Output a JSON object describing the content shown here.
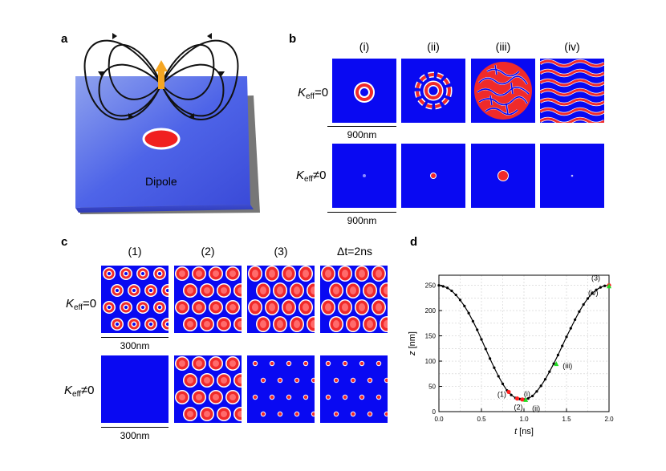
{
  "panels": {
    "a": {
      "label": "a",
      "caption": "Dipole"
    },
    "b": {
      "label": "b",
      "columns": [
        "(i)",
        "(ii)",
        "(iii)",
        "(iv)"
      ],
      "rows": [
        {
          "k": "K",
          "sub": "eff",
          "rest": "=0"
        },
        {
          "k": "K",
          "sub": "eff",
          "rest": "≠0"
        }
      ],
      "scalebar": "900nm"
    },
    "c": {
      "label": "c",
      "columns": [
        "(1)",
        "(2)",
        "(3)",
        "Δt=2ns"
      ],
      "rows": [
        {
          "k": "K",
          "sub": "eff",
          "rest": "=0"
        },
        {
          "k": "K",
          "sub": "eff",
          "rest": "≠0"
        }
      ],
      "scalebar": "300nm"
    },
    "d": {
      "label": "d"
    }
  },
  "colors": {
    "domain_blue": "#0909f2",
    "core_red": "#f0202a",
    "wall_white": "#ffffff",
    "marker_red": "#ff2020",
    "marker_green": "#22dd22"
  },
  "chart_data": {
    "type": "line",
    "xlabel_italic": "t",
    "xlabel_unit": "[ns]",
    "ylabel_italic": "z",
    "ylabel_unit": "[nm]",
    "xlim": [
      0,
      2.0
    ],
    "ylim": [
      0,
      270
    ],
    "xticks": [
      "0.0",
      "0.5",
      "1.0",
      "1.5",
      "2.0"
    ],
    "yticks": [
      "0",
      "50",
      "100",
      "150",
      "200",
      "250"
    ],
    "grid": true,
    "series": [
      {
        "values": [
          [
            0.0,
            250
          ],
          [
            0.05,
            248
          ],
          [
            0.1,
            245
          ],
          [
            0.15,
            239
          ],
          [
            0.2,
            231
          ],
          [
            0.25,
            221
          ],
          [
            0.3,
            209
          ],
          [
            0.35,
            195
          ],
          [
            0.4,
            179
          ],
          [
            0.45,
            162
          ],
          [
            0.5,
            143
          ],
          [
            0.55,
            124
          ],
          [
            0.6,
            105
          ],
          [
            0.65,
            87
          ],
          [
            0.7,
            70
          ],
          [
            0.75,
            55
          ],
          [
            0.8,
            42
          ],
          [
            0.85,
            33
          ],
          [
            0.9,
            27
          ],
          [
            0.95,
            25
          ],
          [
            1.0,
            24
          ],
          [
            1.05,
            26
          ],
          [
            1.1,
            31
          ],
          [
            1.15,
            40
          ],
          [
            1.2,
            51
          ],
          [
            1.25,
            64
          ],
          [
            1.3,
            79
          ],
          [
            1.35,
            95
          ],
          [
            1.4,
            112
          ],
          [
            1.45,
            130
          ],
          [
            1.5,
            148
          ],
          [
            1.55,
            165
          ],
          [
            1.6,
            182
          ],
          [
            1.65,
            198
          ],
          [
            1.7,
            212
          ],
          [
            1.75,
            224
          ],
          [
            1.8,
            234
          ],
          [
            1.85,
            241
          ],
          [
            1.9,
            246
          ],
          [
            1.95,
            249
          ],
          [
            2.0,
            250
          ]
        ]
      }
    ],
    "markers": [
      {
        "label": "(1)",
        "x": 0.82,
        "y": 39,
        "color": "red"
      },
      {
        "label": "(2)",
        "x": 0.92,
        "y": 26,
        "color": "red"
      },
      {
        "label": "(i)",
        "x": 0.98,
        "y": 24,
        "color": "red"
      },
      {
        "label": "(ii)",
        "x": 1.02,
        "y": 24,
        "color": "green"
      },
      {
        "label": "(iii)",
        "x": 1.38,
        "y": 95,
        "color": "green"
      },
      {
        "label": "(3)",
        "x": 2.0,
        "y": 250,
        "color": "red"
      },
      {
        "label": "(iv)",
        "x": 2.0,
        "y": 249,
        "color": "green"
      }
    ]
  }
}
